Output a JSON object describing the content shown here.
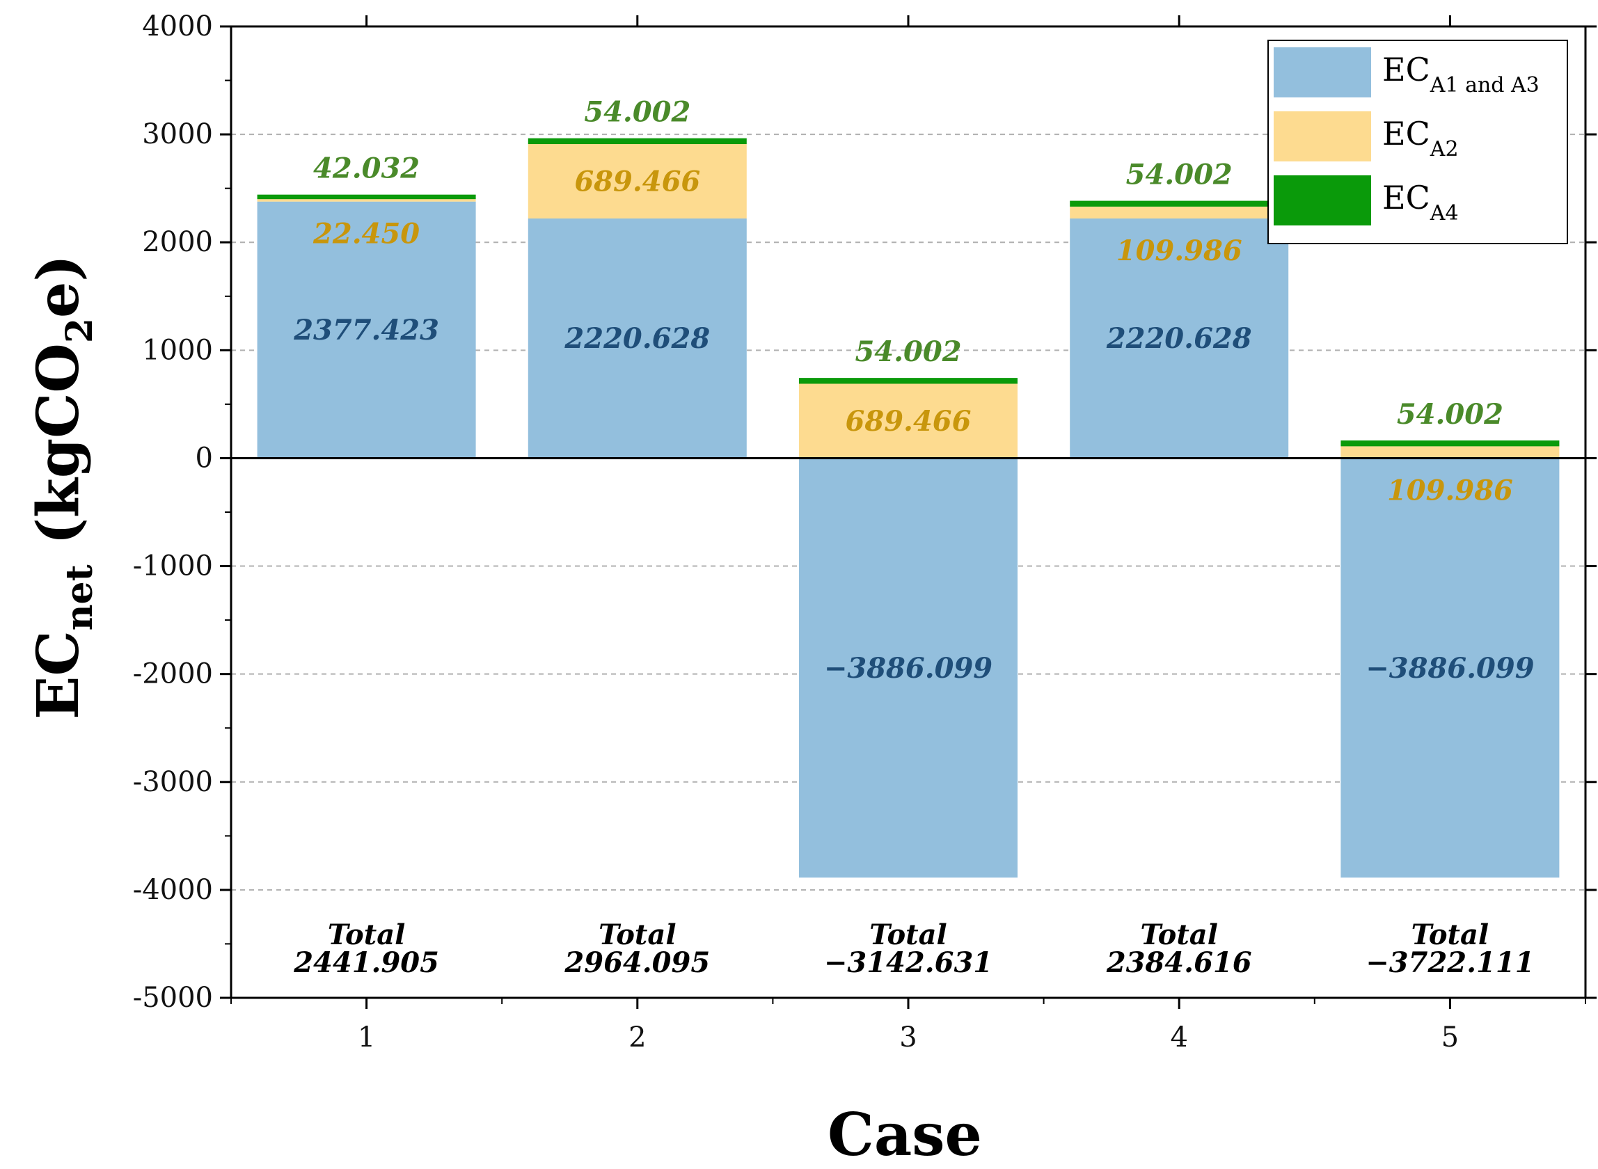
{
  "chart_data": {
    "type": "bar",
    "stacked": true,
    "title": "",
    "xlabel": "Case",
    "ylabel": {
      "main": "EC",
      "sub": "net",
      "unit_prefix": " (kgCO",
      "unit_sub": "2",
      "unit_suffix": "e)"
    },
    "ylim": [
      -5000,
      4000
    ],
    "yticks": [
      4000,
      3000,
      2000,
      1000,
      0,
      -1000,
      -2000,
      -3000,
      -4000,
      -5000
    ],
    "ytick_labels": [
      "4000",
      "3000",
      "2000",
      "1000",
      "0",
      "-1000",
      "-2000",
      "-3000",
      "-4000",
      "-5000"
    ],
    "grid": "horizontal dashed",
    "categories": [
      "1",
      "2",
      "3",
      "4",
      "5"
    ],
    "series": [
      {
        "name": "EC_A1 and A3",
        "legend_main": "EC",
        "legend_sub": "A1 and A3",
        "color": "#93bfdd",
        "label_color": "#1f4e79",
        "values": [
          2377.423,
          2220.628,
          -3886.099,
          2220.628,
          -3886.099
        ],
        "value_labels": [
          "2377.423",
          "2220.628",
          "−3886.099",
          "2220.628",
          "−3886.099"
        ]
      },
      {
        "name": "EC_A2",
        "legend_main": "EC",
        "legend_sub": "A2",
        "color": "#fddb90",
        "label_color": "#c8960c",
        "values": [
          22.45,
          689.466,
          689.466,
          109.986,
          109.986
        ],
        "value_labels": [
          "22.450",
          "689.466",
          "689.466",
          "109.986",
          "109.986"
        ]
      },
      {
        "name": "EC_A4",
        "legend_main": "EC",
        "legend_sub": "A4",
        "color": "#0a9a0a",
        "label_color": "#4a8a2a",
        "values": [
          42.032,
          54.002,
          54.002,
          54.002,
          54.002
        ],
        "value_labels": [
          "42.032",
          "54.002",
          "54.002",
          "54.002",
          "54.002"
        ]
      }
    ],
    "totals": {
      "label": "Total",
      "values": [
        2441.905,
        2964.095,
        -3142.631,
        2384.616,
        -3722.111
      ],
      "value_labels": [
        "2441.905",
        "2964.095",
        "−3142.631",
        "2384.616",
        "−3722.111"
      ]
    },
    "legend_position": "top-right"
  }
}
